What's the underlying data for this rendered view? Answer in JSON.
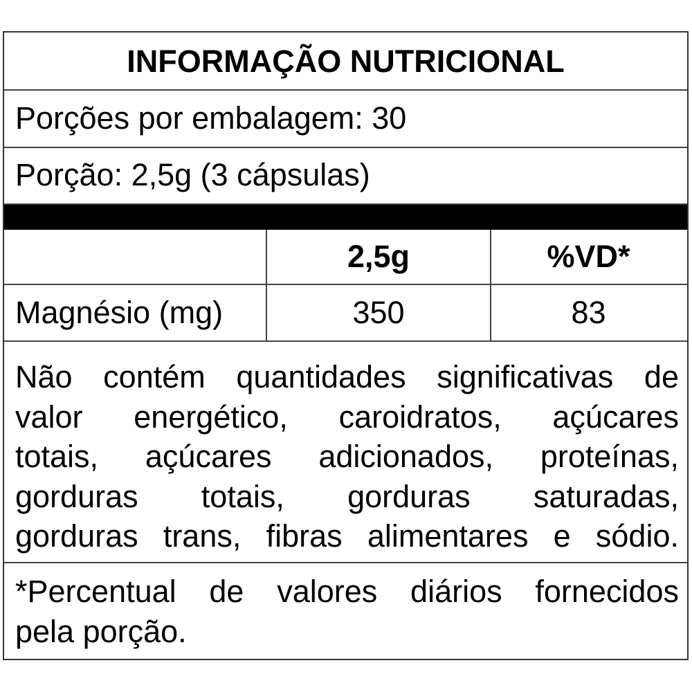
{
  "title": "INFORMAÇÃO NUTRICIONAL",
  "servings_per_package": "Porções por embalagem: 30",
  "serving_size": "Porção: 2,5g (3 cápsulas)",
  "table": {
    "headers": [
      "",
      "2,5g",
      "%VD*"
    ],
    "rows": [
      {
        "nutrient": "Magnésio (mg)",
        "amount": "350",
        "dv": "83"
      }
    ]
  },
  "disclaimer_lines": [
    "Não contém quantidades significativas de",
    "valor energético, caroidratos, açúcares",
    "totais, açúcares adicionados, proteínas,",
    "gorduras totais, gorduras saturadas,",
    "gorduras trans, fibras alimentares e sódio."
  ],
  "footnote_lines": [
    "*Percentual de valores diários fornecidos",
    "pela porção."
  ]
}
